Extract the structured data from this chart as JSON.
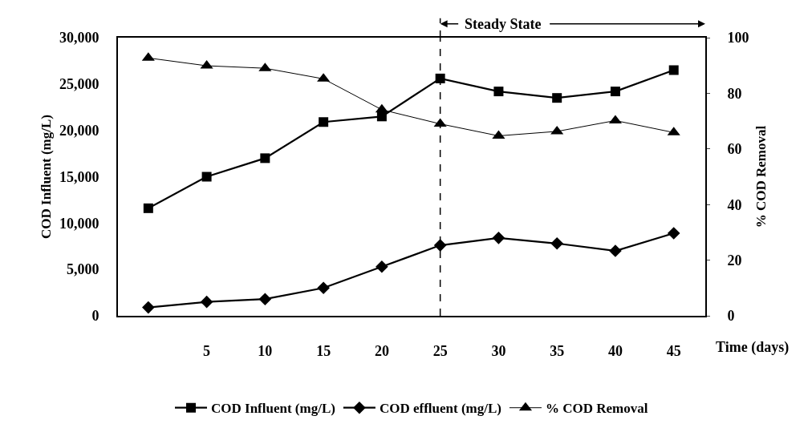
{
  "chart_data": {
    "type": "line",
    "x": [
      0,
      5,
      10,
      15,
      20,
      25,
      30,
      35,
      40,
      45
    ],
    "xlabel": "Time (days)",
    "ylabel": "COD Influent (mg/L)",
    "y2label": "% COD Removal",
    "xlim": [
      -2.6,
      47.7
    ],
    "xticks": [
      5,
      10,
      15,
      20,
      25,
      30,
      35,
      40,
      45
    ],
    "ylim": [
      0,
      30000
    ],
    "yticks": [
      0,
      {
        "value": 5000,
        "label": "5,000"
      },
      {
        "value": 10000,
        "label": "10,000"
      },
      {
        "value": 15000,
        "label": "15,000"
      },
      {
        "value": 20000,
        "label": "20,000"
      },
      {
        "value": 25000,
        "label": "25,000"
      },
      {
        "value": 30000,
        "label": "30,000"
      }
    ],
    "y2lim": [
      0,
      100
    ],
    "y2ticks": [
      0,
      20,
      40,
      60,
      80,
      100
    ],
    "series": [
      {
        "name": "COD Influent (mg/L)",
        "color": "#000000",
        "marker": "square",
        "values": [
          11600,
          15000,
          17000,
          20900,
          21500,
          25600,
          24200,
          23500,
          24200,
          26500
        ]
      },
      {
        "name": "COD effluent (mg/L)",
        "color": "#000000",
        "marker": "diamond",
        "values": [
          900,
          1500,
          1800,
          3000,
          5300,
          7600,
          8400,
          7800,
          7000,
          8900
        ]
      },
      {
        "name": "% COD Removal",
        "color": "#000000",
        "marker": "triangle",
        "axis": "y2",
        "values": [
          92.7,
          89.9,
          89.0,
          85.2,
          74.1,
          69.0,
          64.7,
          66.3,
          70.2,
          65.9
        ]
      }
    ],
    "ref_lines": [
      {
        "axis": "x",
        "value": 25,
        "label": "Steady State",
        "line_style": "dashed"
      }
    ],
    "legend": "bottom"
  }
}
